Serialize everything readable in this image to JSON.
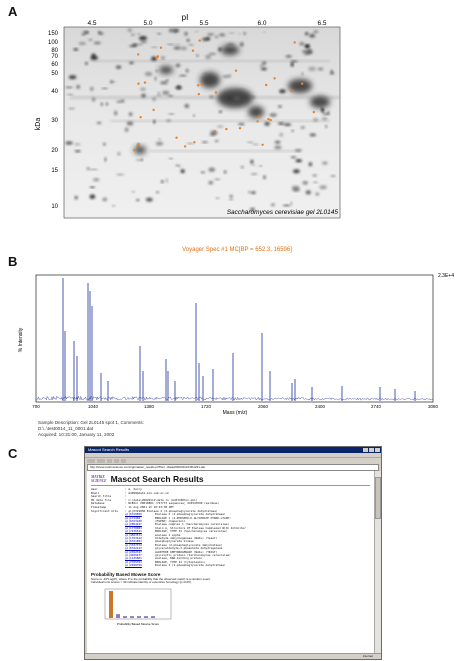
{
  "panel_a": {
    "letter": "A",
    "x_axis_label": "pI",
    "x_ticks": [
      "4.5",
      "5.0",
      "5.5",
      "6.0",
      "6.5"
    ],
    "y_axis_label": "kDa",
    "y_ticks": [
      "150",
      "100",
      "80",
      "70",
      "60",
      "50",
      "40",
      "30",
      "20",
      "15",
      "10"
    ],
    "caption": "Saccharomyces cerevisiae gel 2L0145"
  },
  "panel_b": {
    "letter": "B",
    "title": "Voyager Spec #1 MC[BP = 652.3, 16596]",
    "y_axis_label": "% Intensity",
    "x_axis_label": "Mass (m/z)",
    "right_label": "2.3E+4",
    "x_ticks": [
      "700",
      "1040",
      "1380",
      "1720",
      "2060",
      "2400",
      "2740",
      "3080"
    ],
    "footer": [
      "Sample Description: Gel 2L0145 spot 1, Comments:",
      "D:\\..\\test0014_11_0001.dat",
      "Acquired: 10:31:00, January 11, 2002"
    ]
  },
  "panel_c": {
    "letter": "C",
    "window_title": "Mascot Search Results",
    "address": "http://www.matrixscience.com/cgi/master_results.pl?file=../data/20020111/F001231.dat",
    "logo_line1": "MATRIX",
    "logo_line2": "SCIENCE",
    "page_title": "Mascot Search Results",
    "info_rows": [
      {
        "label": "User",
        "value": ": m. darcy"
      },
      {
        "label": "Email",
        "value": ": md999@data.bio.cam.ac.uk"
      },
      {
        "label": "Search title",
        "value": ":"
      },
      {
        "label": "MS data file",
        "value": ": C:\\data\\20020111\\data in (md333003cc.pkl)"
      },
      {
        "label": "Database",
        "value": ": NCBInr 20010801 (727773 sequences; 216543599 residues)"
      },
      {
        "label": "Timestamp",
        "value": ": 11 Aug 2001 at 10:23:38 GMT"
      },
      {
        "label": "Significant hits",
        "value": ": gi|6319856 Enolase 2 (2-phosphoglycerate dehydratase)"
      }
    ],
    "hits": [
      {
        "acc": "gi|6319856",
        "desc": "Enolase 2 (2-phosphoglycerate dehydratase)"
      },
      {
        "acc": "gi|171446",
        "desc": "ENOLASE 1 (2-PHOSPHO-D-GLYCERATE HYDRO-LYASE)"
      },
      {
        "acc": "gi|6323180",
        "desc": "(HSP60) chaperonin"
      },
      {
        "acc": "gi|2894247",
        "desc": "Enolase complex 1 (Saccharomyces cerevisiae)"
      },
      {
        "acc": "gi|1778083",
        "desc": "Chain A, Structure Of Enolase Complexed With Inhibitor"
      },
      {
        "acc": "gi|7436521",
        "desc": "ENOLASE, TYPE II (Saccharomyces cerevisiae)"
      },
      {
        "acc": "gi|4503571",
        "desc": "enolase 1 alpha"
      },
      {
        "acc": "gi|1703442",
        "desc": "Aldehyde dehydrogenase (NAD+) (Yeast)"
      },
      {
        "acc": "gi|6321891",
        "desc": "phosphoglycerate kinase"
      },
      {
        "acc": "gi|3337372",
        "desc": "Enolase (2-phosphoglycerate dehydratase)"
      },
      {
        "acc": "gi|6322123",
        "desc": "glyceraldehyde-3-phosphate dehydrogenase"
      },
      {
        "acc": "gi|2392327",
        "desc": "ALDEHYDE DEHYDROGENASE (NAD+) (YEAST)"
      },
      {
        "acc": "gi|4929437",
        "desc": "glycolytic protein (Saccharomyces cerevisiae)"
      },
      {
        "acc": "gi|1145801",
        "desc": "enolase, RNA-binding protein"
      },
      {
        "acc": "gi|7705351",
        "desc": "ENOLASE, TYPE II (Cytoplasmic)"
      },
      {
        "acc": "gi|2498356",
        "desc": "Enolase 3 (2-phosphoglycerate dehydratase)"
      }
    ],
    "score_heading": "Probability Based Mowse Score",
    "score_text": [
      "Score is -10*Log(P), where P is the probability that the observed match is a random event.",
      "Individual ions scores > 49 indicate identity or extensive homology (p<0.05)."
    ],
    "histogram_xlabel": "Probability Based Mowse Score",
    "histogram": [
      14,
      2,
      1,
      1,
      1,
      1,
      1
    ],
    "status": "Internet"
  }
}
